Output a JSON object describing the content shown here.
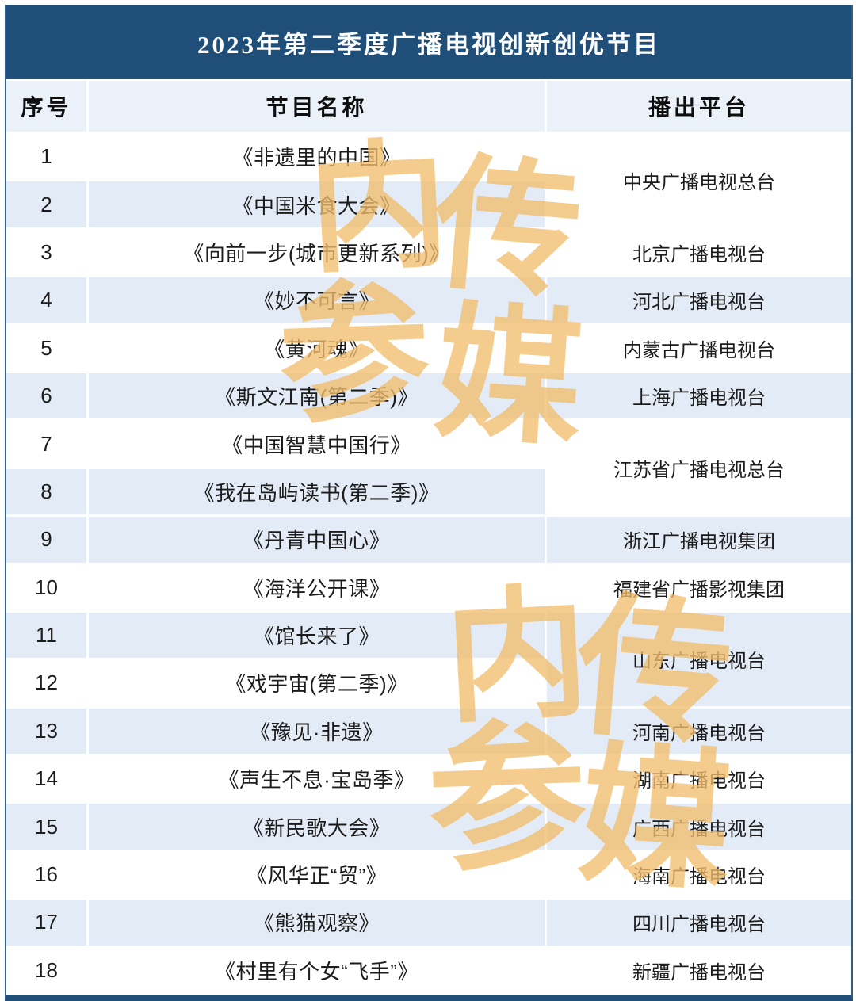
{
  "title": "2023年第二季度广播电视创新创优节目",
  "columns": [
    "序号",
    "节目名称",
    "播出平台"
  ],
  "rows": [
    {
      "no": "1",
      "name": "《非遗里的中国》",
      "platform": "中央广播电视总台",
      "platform_rowspan": 2
    },
    {
      "no": "2",
      "name": "《中国米食大会》",
      "platform": "",
      "merged_with_above": true
    },
    {
      "no": "3",
      "name": "《向前一步(城市更新系列)》",
      "platform": "北京广播电视台"
    },
    {
      "no": "4",
      "name": "《妙不可言》",
      "platform": "河北广播电视台"
    },
    {
      "no": "5",
      "name": "《黄河魂》",
      "platform": "内蒙古广播电视台"
    },
    {
      "no": "6",
      "name": "《斯文江南(第二季)》",
      "platform": "上海广播电视台"
    },
    {
      "no": "7",
      "name": "《中国智慧中国行》",
      "platform": "江苏省广播电视总台",
      "platform_rowspan": 2
    },
    {
      "no": "8",
      "name": "《我在岛屿读书(第二季)》",
      "platform": "",
      "merged_with_above": true
    },
    {
      "no": "9",
      "name": "《丹青中国心》",
      "platform": "浙江广播电视集团"
    },
    {
      "no": "10",
      "name": "《海洋公开课》",
      "platform": "福建省广播影视集团"
    },
    {
      "no": "11",
      "name": "《馆长来了》",
      "platform": "山东广播电视台",
      "platform_rowspan": 2
    },
    {
      "no": "12",
      "name": "《戏宇宙(第二季)》",
      "platform": "",
      "merged_with_above": true
    },
    {
      "no": "13",
      "name": "《豫见·非遗》",
      "platform": "河南广播电视台"
    },
    {
      "no": "14",
      "name": "《声生不息·宝岛季》",
      "platform": "湖南广播电视台"
    },
    {
      "no": "15",
      "name": "《新民歌大会》",
      "platform": "广西广播电视台"
    },
    {
      "no": "16",
      "name": "《风华正“贸”》",
      "platform": "海南广播电视台"
    },
    {
      "no": "17",
      "name": "《熊猫观察》",
      "platform": "四川广播电视台"
    },
    {
      "no": "18",
      "name": "《村里有个女“飞手”》",
      "platform": "新疆广播电视台"
    }
  ],
  "watermark": {
    "chars": [
      "内",
      "传",
      "参",
      "媒",
      "内",
      "传",
      "参",
      "媒"
    ],
    "color": "#F2BE6E"
  },
  "colors": {
    "banner_navy": "#1F4E79",
    "header_row_bg": "#EAF1F8",
    "stripe_blue": "#E3ECF6",
    "row_white": "#FFFFFF",
    "watermark_gold": "#F2BE6E",
    "text_dark": "#1C1C1C"
  }
}
